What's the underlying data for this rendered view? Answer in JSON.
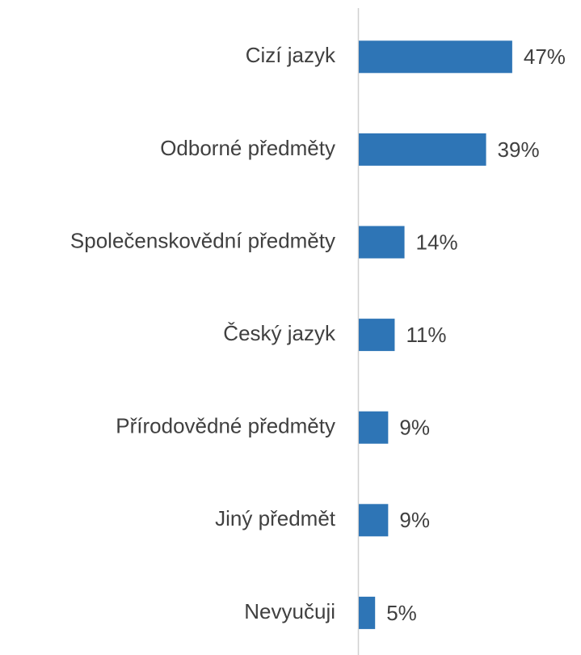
{
  "chart_data": {
    "type": "bar",
    "orientation": "horizontal",
    "categories": [
      "Cizí jazyk",
      "Odborné předměty",
      "Společenskovědní předměty",
      "Český jazyk",
      "Přírodovědné předměty",
      "Jiný předmět",
      "Nevyučuji"
    ],
    "values": [
      47,
      39,
      14,
      11,
      9,
      9,
      5
    ],
    "value_labels": [
      "47%",
      "39%",
      "14%",
      "11%",
      "9%",
      "9%",
      "5%"
    ],
    "color": "#2e75b6"
  }
}
